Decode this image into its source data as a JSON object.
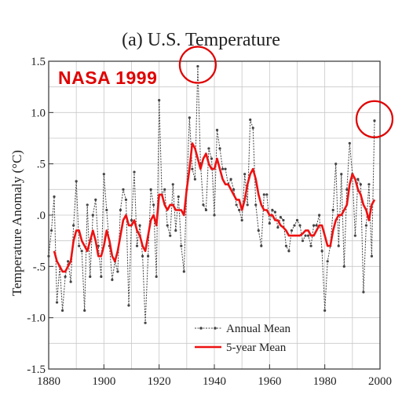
{
  "title": "(a)  U.S. Temperature",
  "stamp": "NASA 1999",
  "chart_data": {
    "type": "line",
    "title": "(a)  U.S. Temperature",
    "ylabel": "Temperature Anomaly (°C)",
    "xlabel": "",
    "xlim": [
      1880,
      2000
    ],
    "ylim": [
      -1.5,
      1.5
    ],
    "x_ticks": [
      1880,
      1900,
      1920,
      1940,
      1960,
      1980,
      2000
    ],
    "y_ticks": [
      -1.5,
      -1.0,
      -0.5,
      0.0,
      0.5,
      1.0,
      1.5
    ],
    "y_tick_labels": [
      "-1.5",
      "-1.0",
      "-.5",
      ".0",
      ".5",
      "1.0",
      "1.5"
    ],
    "grid": true,
    "legend_position": "bottom-right",
    "series": [
      {
        "name": "Annual Mean",
        "color": "#444444",
        "style": "dotted-markers",
        "x": [
          1880,
          1881,
          1882,
          1883,
          1884,
          1885,
          1886,
          1887,
          1888,
          1889,
          1890,
          1891,
          1892,
          1893,
          1894,
          1895,
          1896,
          1897,
          1898,
          1899,
          1900,
          1901,
          1902,
          1903,
          1904,
          1905,
          1906,
          1907,
          1908,
          1909,
          1910,
          1911,
          1912,
          1913,
          1914,
          1915,
          1916,
          1917,
          1918,
          1919,
          1920,
          1921,
          1922,
          1923,
          1924,
          1925,
          1926,
          1927,
          1928,
          1929,
          1930,
          1931,
          1932,
          1933,
          1934,
          1935,
          1936,
          1937,
          1938,
          1939,
          1940,
          1941,
          1942,
          1943,
          1944,
          1945,
          1946,
          1947,
          1948,
          1949,
          1950,
          1951,
          1952,
          1953,
          1954,
          1955,
          1956,
          1957,
          1958,
          1959,
          1960,
          1961,
          1962,
          1963,
          1964,
          1965,
          1966,
          1967,
          1968,
          1969,
          1970,
          1971,
          1972,
          1973,
          1974,
          1975,
          1976,
          1977,
          1978,
          1979,
          1980,
          1981,
          1982,
          1983,
          1984,
          1985,
          1986,
          1987,
          1988,
          1989,
          1990,
          1991,
          1992,
          1993,
          1994,
          1995,
          1996,
          1997,
          1998
        ],
        "y": [
          -0.4,
          -0.15,
          0.18,
          -0.85,
          -0.5,
          -0.93,
          -0.6,
          -0.45,
          -0.65,
          -0.1,
          0.33,
          -0.3,
          -0.35,
          -0.93,
          0.1,
          -0.6,
          0.0,
          0.15,
          -0.3,
          -0.6,
          0.4,
          0.05,
          -0.3,
          -0.63,
          -0.45,
          -0.55,
          0.05,
          0.25,
          0.15,
          -0.88,
          -0.05,
          0.42,
          -0.3,
          -0.1,
          -0.4,
          -1.05,
          -0.4,
          0.25,
          0.1,
          -0.6,
          1.12,
          0.2,
          0.25,
          -0.1,
          -0.2,
          0.3,
          -0.15,
          0.18,
          -0.3,
          -0.55,
          0.25,
          0.95,
          0.45,
          0.35,
          1.45,
          0.5,
          0.1,
          0.05,
          0.65,
          0.55,
          0.0,
          0.83,
          0.65,
          0.45,
          0.45,
          0.3,
          0.35,
          0.25,
          0.1,
          0.05,
          -0.05,
          0.4,
          0.1,
          0.93,
          0.85,
          0.1,
          -0.15,
          -0.3,
          0.2,
          0.2,
          -0.08,
          0.05,
          0.03,
          -0.12,
          -0.02,
          -0.05,
          -0.3,
          -0.35,
          -0.15,
          -0.1,
          -0.05,
          -0.1,
          -0.25,
          -0.2,
          -0.2,
          -0.3,
          -0.1,
          -0.1,
          0.0,
          -0.35,
          -0.93,
          -0.45,
          -0.3,
          0.05,
          0.5,
          -0.3,
          0.4,
          -0.5,
          0.25,
          0.7,
          0.4,
          -0.2,
          0.35,
          0.3,
          -0.75,
          -0.1,
          0.3,
          -0.4,
          0.92
        ]
      },
      {
        "name": "5-year Mean",
        "color": "#ee1111",
        "style": "solid",
        "x": [
          1882,
          1883,
          1884,
          1885,
          1886,
          1887,
          1888,
          1889,
          1890,
          1891,
          1892,
          1893,
          1894,
          1895,
          1896,
          1897,
          1898,
          1899,
          1900,
          1901,
          1902,
          1903,
          1904,
          1905,
          1906,
          1907,
          1908,
          1909,
          1910,
          1911,
          1912,
          1913,
          1914,
          1915,
          1916,
          1917,
          1918,
          1919,
          1920,
          1921,
          1922,
          1923,
          1924,
          1925,
          1926,
          1927,
          1928,
          1929,
          1930,
          1931,
          1932,
          1933,
          1934,
          1935,
          1936,
          1937,
          1938,
          1939,
          1940,
          1941,
          1942,
          1943,
          1944,
          1945,
          1946,
          1947,
          1948,
          1949,
          1950,
          1951,
          1952,
          1953,
          1954,
          1955,
          1956,
          1957,
          1958,
          1959,
          1960,
          1961,
          1962,
          1963,
          1964,
          1965,
          1966,
          1967,
          1968,
          1969,
          1970,
          1971,
          1972,
          1973,
          1974,
          1975,
          1976,
          1977,
          1978,
          1979,
          1980,
          1981,
          1982,
          1983,
          1984,
          1985,
          1986,
          1987,
          1988,
          1989,
          1990,
          1991,
          1992,
          1993,
          1994,
          1995,
          1996,
          1997,
          1998
        ],
        "y": [
          -0.35,
          -0.45,
          -0.5,
          -0.55,
          -0.55,
          -0.5,
          -0.45,
          -0.25,
          -0.15,
          -0.15,
          -0.25,
          -0.3,
          -0.35,
          -0.25,
          -0.15,
          -0.25,
          -0.4,
          -0.4,
          -0.3,
          -0.15,
          -0.25,
          -0.4,
          -0.45,
          -0.35,
          -0.2,
          -0.05,
          0.0,
          -0.1,
          -0.1,
          -0.05,
          -0.15,
          -0.2,
          -0.3,
          -0.35,
          -0.2,
          -0.05,
          0.0,
          -0.1,
          0.2,
          0.2,
          0.1,
          0.05,
          0.1,
          0.1,
          0.05,
          0.05,
          0.05,
          0.0,
          0.25,
          0.45,
          0.7,
          0.65,
          0.55,
          0.45,
          0.55,
          0.6,
          0.5,
          0.45,
          0.45,
          0.55,
          0.45,
          0.35,
          0.3,
          0.3,
          0.25,
          0.2,
          0.15,
          0.15,
          0.05,
          0.15,
          0.3,
          0.4,
          0.45,
          0.35,
          0.2,
          0.1,
          0.05,
          0.05,
          0.0,
          0.0,
          -0.05,
          -0.05,
          -0.1,
          -0.12,
          -0.15,
          -0.2,
          -0.2,
          -0.2,
          -0.2,
          -0.2,
          -0.18,
          -0.15,
          -0.15,
          -0.2,
          -0.2,
          -0.15,
          -0.1,
          -0.1,
          -0.2,
          -0.3,
          -0.3,
          -0.15,
          -0.05,
          0.0,
          0.0,
          0.05,
          0.1,
          0.3,
          0.4,
          0.35,
          0.25,
          0.2,
          0.1,
          0.05,
          -0.05,
          0.1,
          0.15
        ]
      }
    ]
  },
  "highlight_circles_years": [
    1934,
    1998
  ]
}
